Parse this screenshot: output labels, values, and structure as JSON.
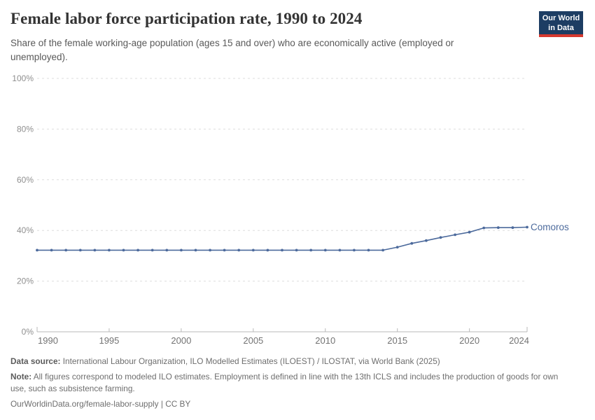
{
  "header": {
    "title": "Female labor force participation rate, 1990 to 2024",
    "subtitle": "Share of the female working-age population (ages 15 and over) who are economically active (employed or unemployed).",
    "logo": {
      "line1": "Our World",
      "line2": "in Data"
    }
  },
  "chart_data": {
    "type": "line",
    "title": "Female labor force participation rate, 1990 to 2024",
    "x": [
      1990,
      1991,
      1992,
      1993,
      1994,
      1995,
      1996,
      1997,
      1998,
      1999,
      2000,
      2001,
      2002,
      2003,
      2004,
      2005,
      2006,
      2007,
      2008,
      2009,
      2010,
      2011,
      2012,
      2013,
      2014,
      2015,
      2016,
      2017,
      2018,
      2019,
      2020,
      2021,
      2022,
      2023,
      2024
    ],
    "series": [
      {
        "name": "Comoros",
        "color": "#4C6A9C",
        "values": [
          32.2,
          32.2,
          32.2,
          32.2,
          32.2,
          32.2,
          32.2,
          32.2,
          32.2,
          32.2,
          32.2,
          32.2,
          32.2,
          32.2,
          32.2,
          32.2,
          32.2,
          32.2,
          32.2,
          32.2,
          32.2,
          32.2,
          32.2,
          32.2,
          32.2,
          33.4,
          34.9,
          36.0,
          37.2,
          38.3,
          39.3,
          41.0,
          41.1,
          41.1,
          41.3
        ]
      }
    ],
    "xlabel": "",
    "ylabel": "",
    "xlim": [
      1990,
      2024
    ],
    "ylim": [
      0,
      100
    ],
    "x_ticks": [
      1990,
      1995,
      2000,
      2005,
      2010,
      2015,
      2020,
      2024
    ],
    "y_ticks": [
      0,
      20,
      40,
      60,
      80,
      100
    ],
    "y_tick_suffix": "%",
    "grid": "horizontal-dashed",
    "legend_position": "end-of-line-label",
    "marker": "dot-per-year"
  },
  "footer": {
    "data_source_label": "Data source:",
    "data_source_text": " International Labour Organization, ILO Modelled Estimates (ILOEST) / ILOSTAT, via World Bank (2025)",
    "note_label": "Note:",
    "note_text": " All figures correspond to modeled ILO estimates. Employment is defined in line with the 13th ICLS and includes the production of goods for own use, such as subsistence farming.",
    "url": "OurWorldinData.org/female-labor-supply",
    "separator": " | ",
    "license": "CC BY"
  },
  "colors": {
    "series_blue": "#4C6A9C",
    "grid": "#dddddd",
    "axis": "#b9b9b9",
    "y_tick_label": "#8f8f8f",
    "x_tick_label": "#737373",
    "title_text": "#333333",
    "subtitle_text": "#595959",
    "footer_text": "#6e6e6e",
    "logo_bg": "#1d3d63",
    "logo_red": "#d6392f"
  }
}
